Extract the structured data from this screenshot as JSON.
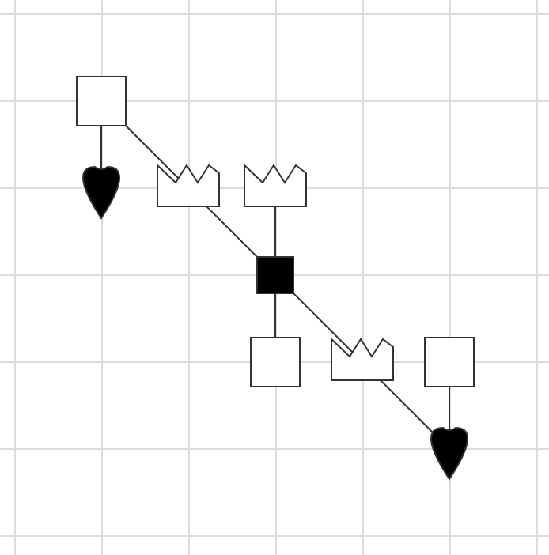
{
  "diagram": {
    "colors": {
      "background": "#ffffff",
      "grid": "#dcdcdc",
      "stroke": "#333333",
      "fill_white": "#ffffff",
      "fill_black": "#000000"
    },
    "nodes": [
      {
        "id": "n1",
        "shape": "square",
        "fill": "white"
      },
      {
        "id": "n2",
        "shape": "teardrop",
        "fill": "black"
      },
      {
        "id": "n3",
        "shape": "crown",
        "fill": "white"
      },
      {
        "id": "n4",
        "shape": "crown",
        "fill": "white"
      },
      {
        "id": "n5",
        "shape": "square",
        "fill": "black"
      },
      {
        "id": "n6",
        "shape": "square",
        "fill": "white"
      },
      {
        "id": "n7",
        "shape": "crown",
        "fill": "white"
      },
      {
        "id": "n8",
        "shape": "square",
        "fill": "white"
      },
      {
        "id": "n9",
        "shape": "teardrop",
        "fill": "black"
      }
    ],
    "edges": [
      {
        "from": "n1",
        "to": "n2"
      },
      {
        "from": "n1",
        "to": "n3"
      },
      {
        "from": "n3",
        "to": "n5"
      },
      {
        "from": "n4",
        "to": "n5"
      },
      {
        "from": "n5",
        "to": "n6"
      },
      {
        "from": "n5",
        "to": "n7"
      },
      {
        "from": "n7",
        "to": "n9"
      },
      {
        "from": "n8",
        "to": "n9"
      }
    ]
  }
}
